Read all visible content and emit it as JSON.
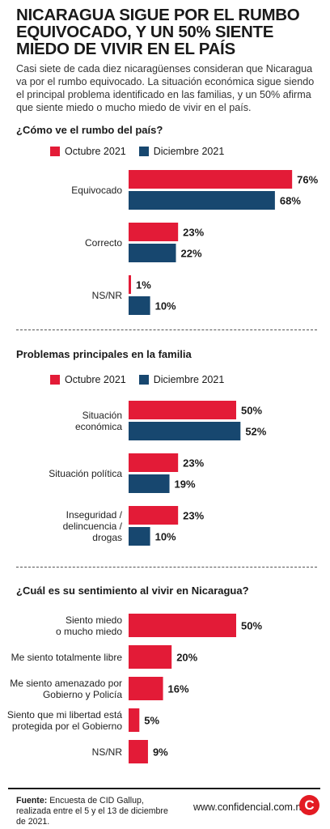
{
  "headline": "NICARAGUA SIGUE POR EL RUMBO EQUIVOCADO, Y UN 50% SIENTE MIEDO DE VIVIR EN EL PAÍS",
  "intro": "Casi siete de cada diez nicaragüenses consideran que Nicaragua va por el rumbo equivocado. La situación económica sigue siendo el principal problema identificado en las familias, y un 50% afirma que siente miedo o mucho miedo de vivir en el país.",
  "colors": {
    "october": "#e31b37",
    "december": "#17476f"
  },
  "legend": {
    "october": "Octubre 2021",
    "december": "Diciembre 2021"
  },
  "chart_data": [
    {
      "type": "bar",
      "title": "¿Cómo ve el rumbo del país?",
      "categories": [
        [
          "Equivocado"
        ],
        [
          "Correcto"
        ],
        [
          "NS/NR"
        ]
      ],
      "series": [
        {
          "name": "Octubre 2021",
          "values": [
            76,
            23,
            1
          ]
        },
        {
          "name": "Diciembre 2021",
          "values": [
            68,
            22,
            10
          ]
        }
      ],
      "unit": "%"
    },
    {
      "type": "bar",
      "title": "Problemas principales en la familia",
      "categories": [
        [
          "Situación",
          "económica"
        ],
        [
          "Situación política"
        ],
        [
          "Inseguridad /",
          "delincuencia /",
          "drogas"
        ]
      ],
      "series": [
        {
          "name": "Octubre 2021",
          "values": [
            50,
            23,
            23
          ]
        },
        {
          "name": "Diciembre 2021",
          "values": [
            52,
            19,
            10
          ]
        }
      ],
      "unit": "%"
    },
    {
      "type": "bar",
      "title": "¿Cuál es su sentimiento al vivir en Nicaragua?",
      "categories": [
        [
          "Siento miedo",
          "o mucho miedo"
        ],
        [
          "Me siento totalmente libre"
        ],
        [
          "Me siento amenazado por",
          "Gobierno y Policía"
        ],
        [
          "Siento que mi libertad está",
          "protegida por el Gobierno"
        ],
        [
          "NS/NR"
        ]
      ],
      "series": [
        {
          "values": [
            50,
            20,
            16,
            5,
            9
          ]
        }
      ],
      "unit": "%"
    }
  ],
  "footer": {
    "label": "Fuente:",
    "text": "Encuesta de CID Gallup, realizada entre el 5 y el 13 de diciembre de 2021.",
    "site": "www.confidencial.com.ni",
    "logo": "C"
  }
}
